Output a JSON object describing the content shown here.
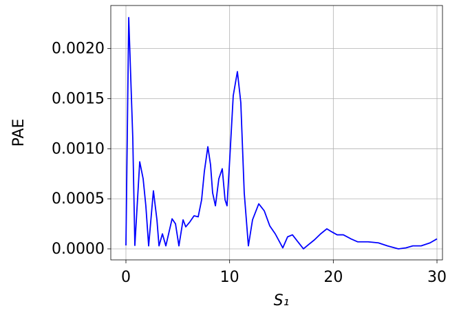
{
  "chart_data": {
    "type": "line",
    "xlabel": "S₁",
    "ylabel": "PAE",
    "x": [
      0,
      0.27,
      0.66,
      0.86,
      1.33,
      1.66,
      1.92,
      2.19,
      2.65,
      2.99,
      3.19,
      3.52,
      3.85,
      4.45,
      4.78,
      5.11,
      5.51,
      5.77,
      6.17,
      6.57,
      6.97,
      7.3,
      7.56,
      7.9,
      8.16,
      8.36,
      8.63,
      8.96,
      9.29,
      9.56,
      9.75,
      10.02,
      10.35,
      10.75,
      11.08,
      11.41,
      11.81,
      12.21,
      12.81,
      13.34,
      13.87,
      14.4,
      15.13,
      15.59,
      16.06,
      16.59,
      17.12,
      17.58,
      18.18,
      18.78,
      19.38,
      19.85,
      20.37,
      20.97,
      21.7,
      22.36,
      23.36,
      24.35,
      25.22,
      26.28,
      27.01,
      27.67,
      28.47,
      29.33,
      30
    ],
    "values": [
      3.4e-05,
      0.00231,
      0.00111,
      3.4e-05,
      0.00087,
      0.0007,
      0.00043,
      3e-05,
      0.00058,
      0.00029,
      3e-05,
      0.00015,
      3e-05,
      0.0003,
      0.00025,
      3e-05,
      0.00029,
      0.00022,
      0.00027,
      0.00033,
      0.00032,
      0.00049,
      0.00077,
      0.00102,
      0.00084,
      0.00056,
      0.00043,
      0.0007,
      0.0008,
      0.00049,
      0.00043,
      0.00091,
      0.00153,
      0.00177,
      0.00146,
      0.00056,
      3e-05,
      0.00029,
      0.00045,
      0.00038,
      0.00023,
      0.00015,
      1e-05,
      0.00012,
      0.00014,
      7e-05,
      0,
      4e-05,
      9e-05,
      0.00015,
      0.0002,
      0.00017,
      0.00014,
      0.00014,
      0.0001,
      7e-05,
      7e-05,
      6e-05,
      3e-05,
      0,
      1e-05,
      3e-05,
      3e-05,
      6e-05,
      0.0001
    ],
    "color": "#0000ff",
    "xlim": [
      -1.46,
      30.53
    ],
    "xticks": [
      0,
      10,
      20,
      30
    ],
    "ylim": [
      -0.00011,
      0.00243
    ],
    "yticks": [
      {
        "value": 0,
        "label": "0.0000"
      },
      {
        "value": 0.0005,
        "label": "0.0005"
      },
      {
        "value": 0.001,
        "label": "0.0010"
      },
      {
        "value": 0.0015,
        "label": "0.0015"
      },
      {
        "value": 0.002,
        "label": "0.0020"
      }
    ],
    "grid": true
  }
}
